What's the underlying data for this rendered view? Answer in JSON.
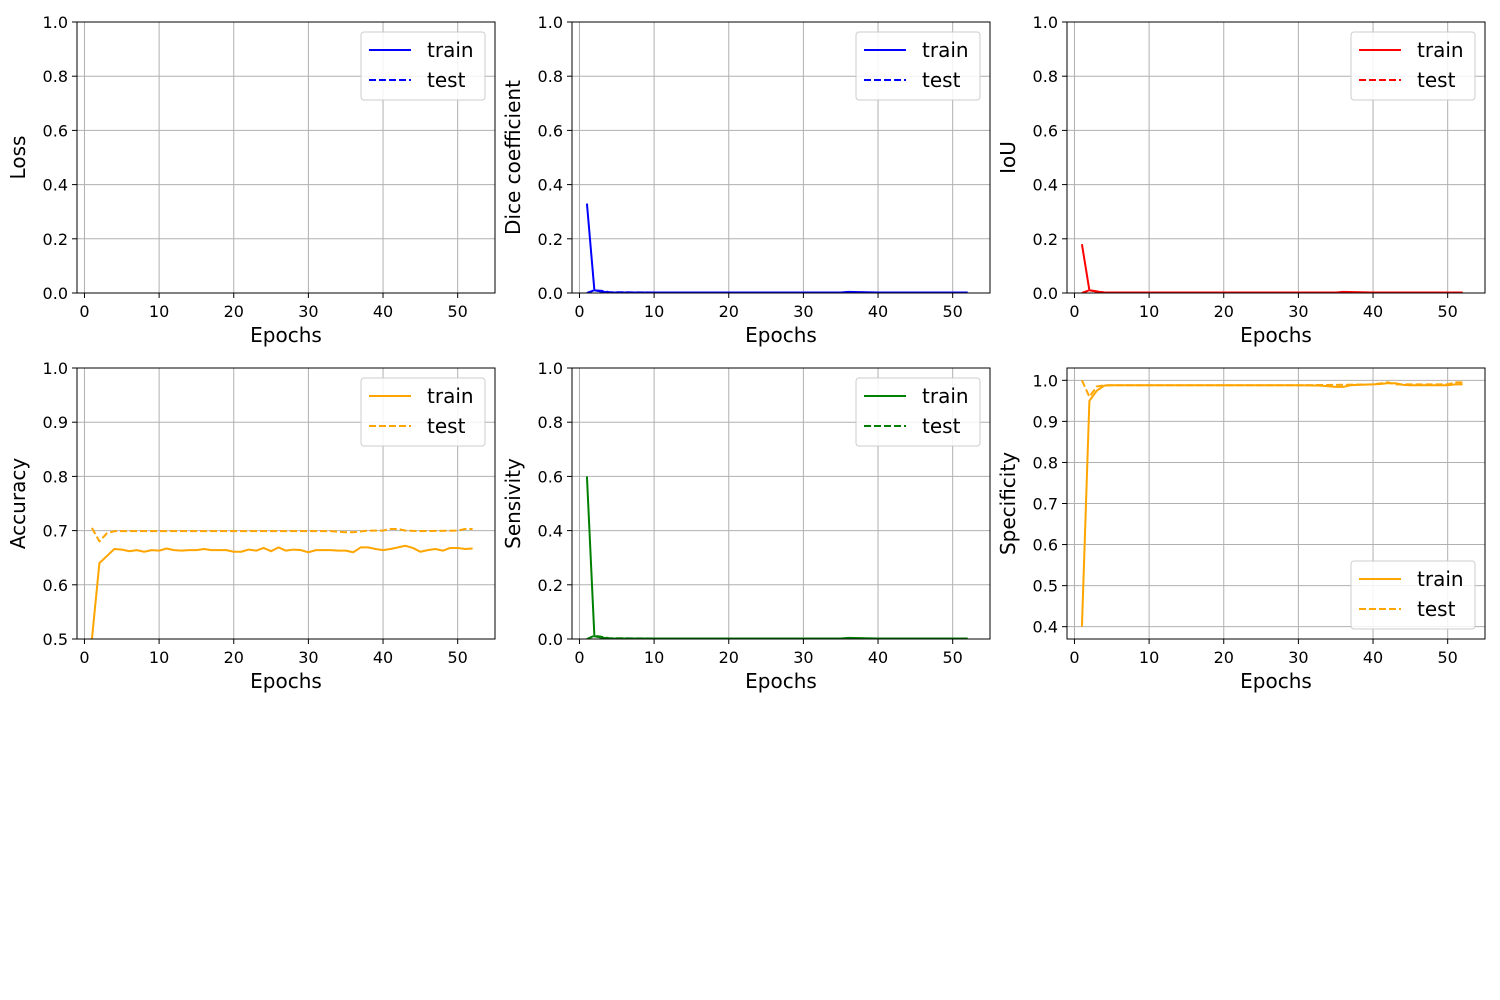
{
  "chart_data": [
    {
      "type": "line",
      "xlabel": "Epochs",
      "ylabel": "Loss",
      "xlim": [
        -1,
        55
      ],
      "ylim": [
        0.0,
        1.0
      ],
      "xticks": [
        0,
        10,
        20,
        30,
        40,
        50
      ],
      "xtick_labels": [
        "0",
        "10",
        "20",
        "30",
        "40",
        "50"
      ],
      "yticks": [
        0.0,
        0.2,
        0.4,
        0.6,
        0.8,
        1.0
      ],
      "ytick_labels": [
        "0.0",
        "0.2",
        "0.4",
        "0.6",
        "0.8",
        "1.0"
      ],
      "grid": true,
      "color": "#0000ff",
      "legend": {
        "position": "top-right",
        "labels": [
          "train",
          "test"
        ]
      },
      "series": [
        {
          "name": "train",
          "style": "solid",
          "x": [],
          "y": []
        },
        {
          "name": "test",
          "style": "dashed",
          "x": [],
          "y": []
        }
      ]
    },
    {
      "type": "line",
      "xlabel": "Epochs",
      "ylabel": "Dice coefficient",
      "xlim": [
        -1,
        55
      ],
      "ylim": [
        0.0,
        1.0
      ],
      "xticks": [
        0,
        10,
        20,
        30,
        40,
        50
      ],
      "xtick_labels": [
        "0",
        "10",
        "20",
        "30",
        "40",
        "50"
      ],
      "yticks": [
        0.0,
        0.2,
        0.4,
        0.6,
        0.8,
        1.0
      ],
      "ytick_labels": [
        "0.0",
        "0.2",
        "0.4",
        "0.6",
        "0.8",
        "1.0"
      ],
      "grid": true,
      "color": "#0000ff",
      "legend": {
        "position": "top-right",
        "labels": [
          "train",
          "test"
        ]
      },
      "series": [
        {
          "name": "train",
          "style": "solid",
          "x": [
            1,
            2,
            3,
            4,
            10,
            20,
            30,
            35,
            36,
            40,
            50,
            52
          ],
          "y": [
            0.33,
            0.01,
            0.005,
            0.002,
            0.002,
            0.002,
            0.002,
            0.002,
            0.004,
            0.002,
            0.002,
            0.002
          ]
        },
        {
          "name": "test",
          "style": "dashed",
          "x": [
            1,
            2,
            3,
            4,
            10,
            20,
            30,
            40,
            50,
            52
          ],
          "y": [
            0.0,
            0.01,
            0.008,
            0.003,
            0.002,
            0.002,
            0.002,
            0.002,
            0.002,
            0.002
          ]
        }
      ]
    },
    {
      "type": "line",
      "xlabel": "Epochs",
      "ylabel": "IoU",
      "xlim": [
        -1,
        55
      ],
      "ylim": [
        0.0,
        1.0
      ],
      "xticks": [
        0,
        10,
        20,
        30,
        40,
        50
      ],
      "xtick_labels": [
        "0",
        "10",
        "20",
        "30",
        "40",
        "50"
      ],
      "yticks": [
        0.0,
        0.2,
        0.4,
        0.6,
        0.8,
        1.0
      ],
      "ytick_labels": [
        "0.0",
        "0.2",
        "0.4",
        "0.6",
        "0.8",
        "1.0"
      ],
      "grid": true,
      "color": "#ff0000",
      "legend": {
        "position": "top-right",
        "labels": [
          "train",
          "test"
        ]
      },
      "series": [
        {
          "name": "train",
          "style": "solid",
          "x": [
            1,
            2,
            3,
            4,
            10,
            20,
            30,
            35,
            36,
            40,
            50,
            52
          ],
          "y": [
            0.18,
            0.01,
            0.005,
            0.002,
            0.002,
            0.002,
            0.002,
            0.002,
            0.004,
            0.002,
            0.002,
            0.002
          ]
        },
        {
          "name": "test",
          "style": "dashed",
          "x": [
            1,
            2,
            3,
            4,
            10,
            20,
            30,
            40,
            50,
            52
          ],
          "y": [
            0.0,
            0.01,
            0.006,
            0.002,
            0.002,
            0.002,
            0.002,
            0.002,
            0.002,
            0.002
          ]
        }
      ]
    },
    {
      "type": "line",
      "xlabel": "Epochs",
      "ylabel": "Accuracy",
      "xlim": [
        -1,
        55
      ],
      "ylim": [
        0.5,
        1.0
      ],
      "xticks": [
        0,
        10,
        20,
        30,
        40,
        50
      ],
      "xtick_labels": [
        "0",
        "10",
        "20",
        "30",
        "40",
        "50"
      ],
      "yticks": [
        0.5,
        0.6,
        0.7,
        0.8,
        0.9,
        1.0
      ],
      "ytick_labels": [
        "0.5",
        "0.6",
        "0.7",
        "0.8",
        "0.9",
        "1.0"
      ],
      "grid": true,
      "color": "#ffa500",
      "legend": {
        "position": "top-right",
        "labels": [
          "train",
          "test"
        ]
      },
      "series": [
        {
          "name": "train",
          "style": "solid",
          "x": [
            1,
            2,
            3,
            4,
            5,
            6,
            7,
            8,
            9,
            10,
            11,
            12,
            13,
            14,
            15,
            16,
            17,
            18,
            19,
            20,
            21,
            22,
            23,
            24,
            25,
            26,
            27,
            28,
            29,
            30,
            31,
            32,
            33,
            34,
            35,
            36,
            37,
            38,
            39,
            40,
            41,
            42,
            43,
            44,
            45,
            46,
            47,
            48,
            49,
            50,
            51,
            52
          ],
          "y": [
            0.5,
            0.64,
            0.653,
            0.666,
            0.665,
            0.662,
            0.664,
            0.661,
            0.664,
            0.663,
            0.667,
            0.664,
            0.663,
            0.664,
            0.664,
            0.666,
            0.664,
            0.664,
            0.664,
            0.661,
            0.661,
            0.665,
            0.663,
            0.668,
            0.662,
            0.669,
            0.663,
            0.665,
            0.664,
            0.66,
            0.664,
            0.664,
            0.664,
            0.663,
            0.663,
            0.66,
            0.669,
            0.669,
            0.666,
            0.664,
            0.666,
            0.669,
            0.672,
            0.668,
            0.661,
            0.664,
            0.666,
            0.663,
            0.668,
            0.668,
            0.666,
            0.667
          ]
        },
        {
          "name": "test",
          "style": "dashed",
          "x": [
            1,
            2,
            3,
            4,
            10,
            20,
            30,
            33,
            35,
            36,
            38,
            40,
            41,
            42,
            43,
            45,
            50,
            51,
            52
          ],
          "y": [
            0.705,
            0.68,
            0.695,
            0.699,
            0.699,
            0.699,
            0.699,
            0.699,
            0.697,
            0.697,
            0.7,
            0.7,
            0.703,
            0.703,
            0.7,
            0.699,
            0.7,
            0.703,
            0.703
          ]
        }
      ]
    },
    {
      "type": "line",
      "xlabel": "Epochs",
      "ylabel": "Sensivity",
      "xlim": [
        -1,
        55
      ],
      "ylim": [
        0.0,
        1.0
      ],
      "xticks": [
        0,
        10,
        20,
        30,
        40,
        50
      ],
      "xtick_labels": [
        "0",
        "10",
        "20",
        "30",
        "40",
        "50"
      ],
      "yticks": [
        0.0,
        0.2,
        0.4,
        0.6,
        0.8,
        1.0
      ],
      "ytick_labels": [
        "0.0",
        "0.2",
        "0.4",
        "0.6",
        "0.8",
        "1.0"
      ],
      "grid": true,
      "color": "#008000",
      "legend": {
        "position": "top-right",
        "labels": [
          "train",
          "test"
        ]
      },
      "series": [
        {
          "name": "train",
          "style": "solid",
          "x": [
            1,
            2,
            3,
            4,
            10,
            20,
            30,
            35,
            36,
            40,
            50,
            52
          ],
          "y": [
            0.6,
            0.01,
            0.005,
            0.002,
            0.002,
            0.002,
            0.002,
            0.002,
            0.004,
            0.002,
            0.002,
            0.002
          ]
        },
        {
          "name": "test",
          "style": "dashed",
          "x": [
            1,
            2,
            3,
            4,
            10,
            20,
            30,
            40,
            50,
            52
          ],
          "y": [
            0.0,
            0.012,
            0.008,
            0.003,
            0.002,
            0.002,
            0.002,
            0.002,
            0.002,
            0.002
          ]
        }
      ]
    },
    {
      "type": "line",
      "xlabel": "Epochs",
      "ylabel": "Specificity",
      "xlim": [
        -1,
        55
      ],
      "ylim": [
        0.37,
        1.03
      ],
      "xticks": [
        0,
        10,
        20,
        30,
        40,
        50
      ],
      "xtick_labels": [
        "0",
        "10",
        "20",
        "30",
        "40",
        "50"
      ],
      "yticks": [
        0.4,
        0.5,
        0.6,
        0.7,
        0.8,
        0.9,
        1.0
      ],
      "ytick_labels": [
        "0.4",
        "0.5",
        "0.6",
        "0.7",
        "0.8",
        "0.9",
        "1.0"
      ],
      "grid": true,
      "color": "#ffa500",
      "legend": {
        "position": "bottom-right",
        "labels": [
          "train",
          "test"
        ]
      },
      "series": [
        {
          "name": "train",
          "style": "solid",
          "x": [
            1,
            2,
            3,
            4,
            5,
            10,
            20,
            30,
            33,
            35,
            36,
            37,
            38,
            40,
            41,
            42,
            43,
            44,
            45,
            50,
            51,
            52
          ],
          "y": [
            0.4,
            0.95,
            0.975,
            0.987,
            0.988,
            0.988,
            0.988,
            0.988,
            0.987,
            0.984,
            0.984,
            0.988,
            0.989,
            0.99,
            0.991,
            0.993,
            0.993,
            0.989,
            0.988,
            0.988,
            0.99,
            0.99
          ]
        },
        {
          "name": "test",
          "style": "dashed",
          "x": [
            1,
            2,
            3,
            4,
            5,
            10,
            20,
            30,
            40,
            42,
            43,
            44,
            50,
            51,
            52
          ],
          "y": [
            1.0,
            0.96,
            0.985,
            0.988,
            0.988,
            0.988,
            0.988,
            0.988,
            0.99,
            0.995,
            0.99,
            0.99,
            0.99,
            0.995,
            0.995
          ]
        }
      ]
    }
  ]
}
